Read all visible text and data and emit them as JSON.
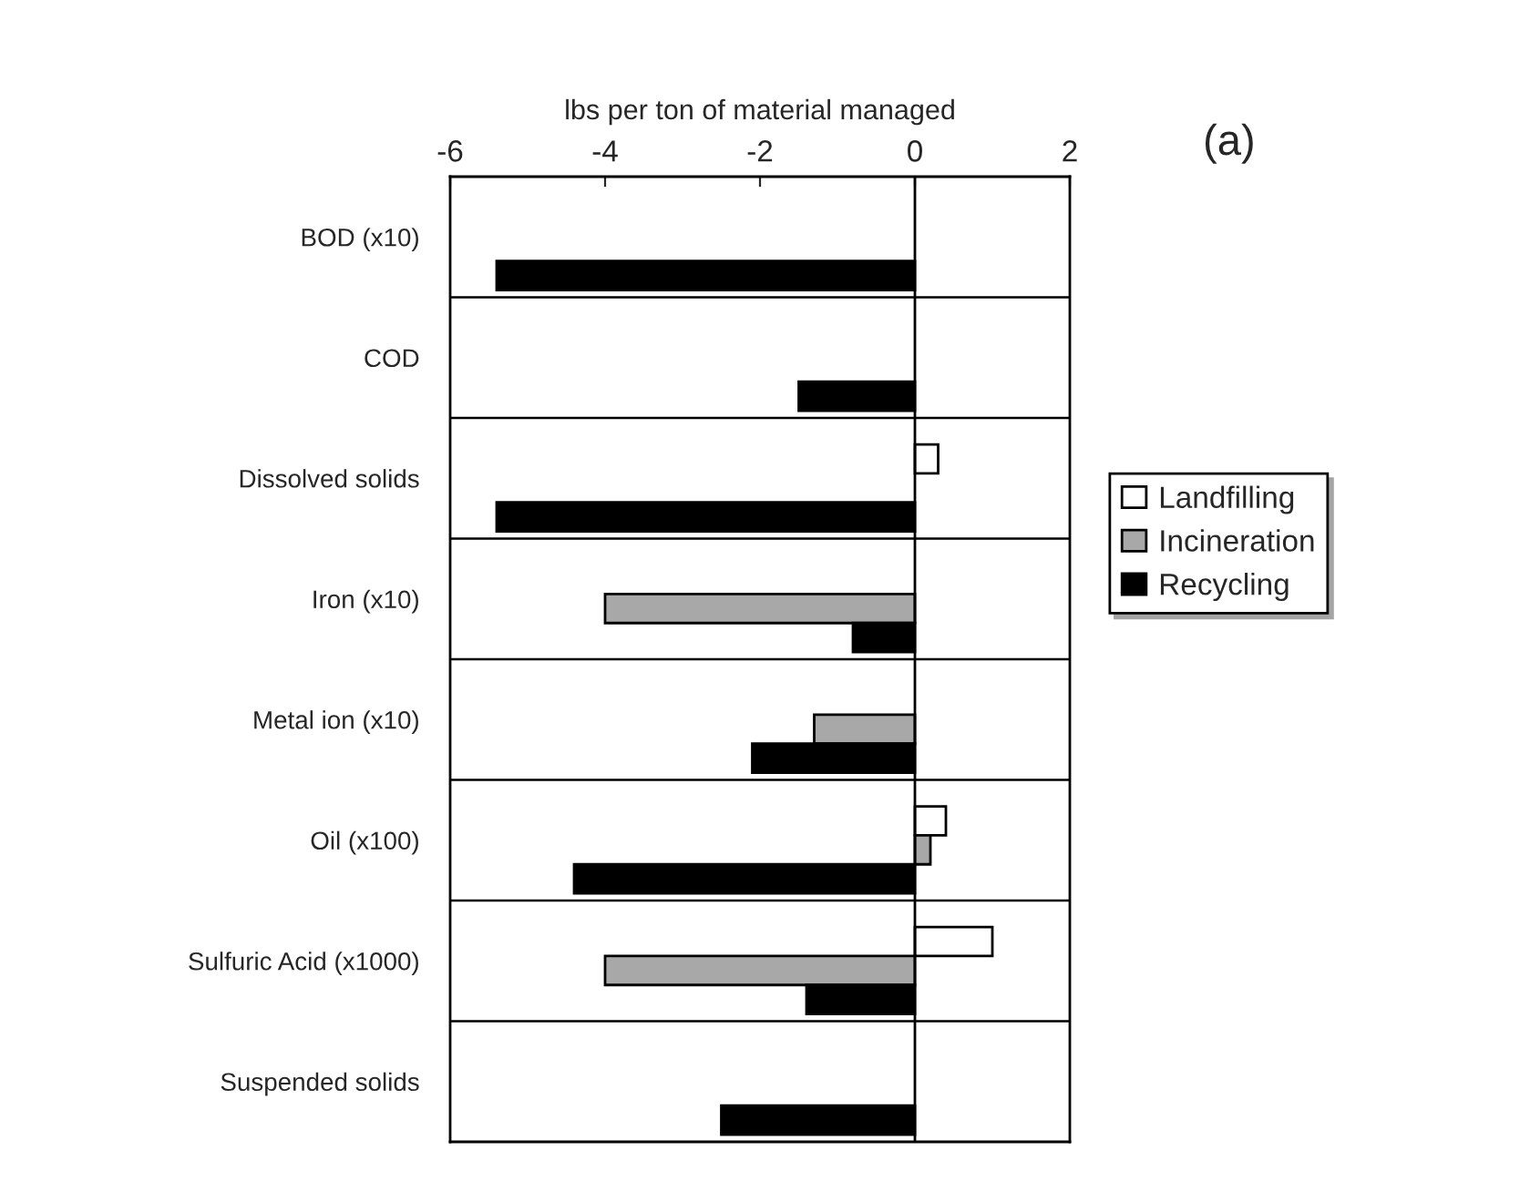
{
  "chart_data": {
    "type": "bar",
    "orientation": "horizontal",
    "xlabel": "lbs per ton of material managed",
    "categories": [
      "BOD (x10)",
      "COD",
      "Dissolved solids",
      "Iron (x10)",
      "Metal ion (x10)",
      "Oil (x100)",
      "Sulfuric Acid (x1000)",
      "Suspended solids"
    ],
    "series": [
      {
        "name": "Landfilling",
        "color": "#ffffff",
        "values": [
          null,
          null,
          0.3,
          null,
          null,
          0.4,
          1.0,
          null
        ]
      },
      {
        "name": "Incineration",
        "color": "#a8a8a8",
        "values": [
          null,
          null,
          null,
          -4.0,
          -1.3,
          0.2,
          -4.0,
          null
        ]
      },
      {
        "name": "Recycling",
        "color": "#000000",
        "values": [
          -5.4,
          -1.5,
          -5.4,
          -0.8,
          -2.1,
          -4.4,
          -1.4,
          -2.5
        ]
      }
    ],
    "xlim": [
      -6,
      2
    ],
    "xticks": [
      -6,
      -4,
      -2,
      0,
      2
    ],
    "grid": "y",
    "legend": "right",
    "ref_lines": [
      {
        "axis": "x",
        "value": 0
      }
    ],
    "annotations": [
      "(a)"
    ]
  }
}
